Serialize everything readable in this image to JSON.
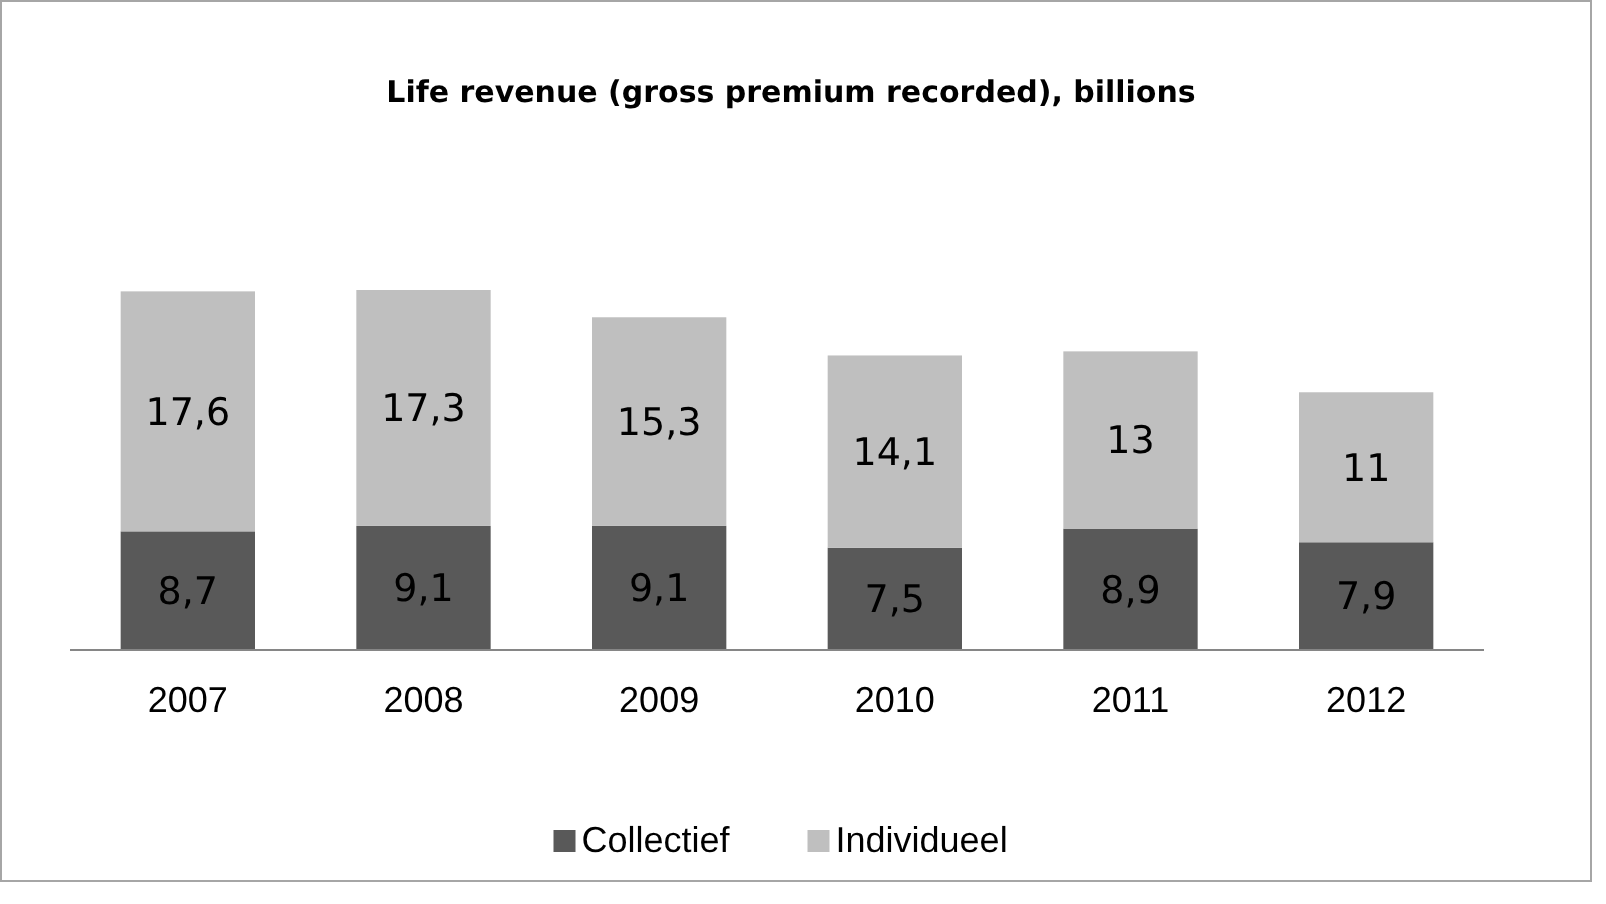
{
  "chart_data": {
    "type": "bar",
    "title": "Life revenue (gross premium recorded), billions",
    "categories": [
      "2007",
      "2008",
      "2009",
      "2010",
      "2011",
      "2012"
    ],
    "stacked": true,
    "legend": "bottom",
    "series": [
      {
        "name": "Collectief",
        "color": "#595959",
        "values": [
          8.7,
          9.1,
          9.1,
          7.5,
          8.9,
          7.9
        ],
        "value_labels": [
          "8,7",
          "9,1",
          "9,1",
          "7,5",
          "8,9",
          "7,9"
        ]
      },
      {
        "name": "Individueel",
        "color": "#bfbfbf",
        "values": [
          17.6,
          17.3,
          15.3,
          14.1,
          13,
          11
        ],
        "value_labels": [
          "17,6",
          "17,3",
          "15,3",
          "14,1",
          "13",
          "11"
        ]
      }
    ]
  }
}
